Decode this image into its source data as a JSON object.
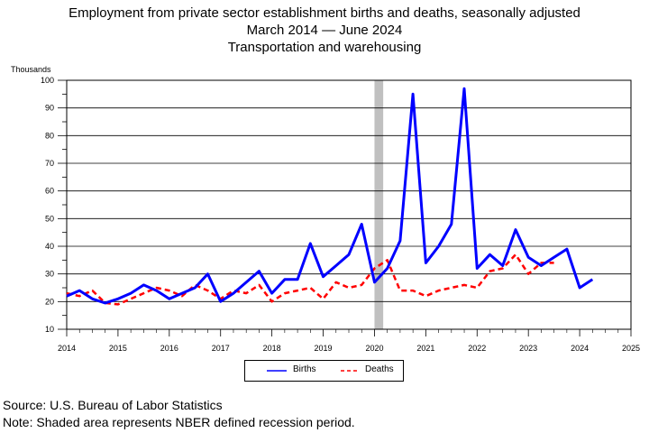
{
  "title": "Employment from private sector establishment births and deaths, seasonally adjusted",
  "subtitle_start": "March 2014",
  "subtitle_end": "June 2024",
  "subtitle_dash": "—",
  "industry": "Transportation and warehousing",
  "source": "Source: U.S. Bureau of Labor Statistics",
  "note": "Note: Shaded area represents NBER defined recession period.",
  "colors": {
    "births": "#0000ff",
    "deaths": "#ff0000",
    "recession": "#c0c0c0"
  },
  "chart_data": {
    "type": "line",
    "ylabel": "Thousands",
    "xlabel": "",
    "xlim": [
      2014,
      2025
    ],
    "ylim": [
      10,
      100
    ],
    "y_ticks": [
      10,
      20,
      30,
      40,
      50,
      60,
      70,
      80,
      90,
      100
    ],
    "x_ticks": [
      2014,
      2015,
      2016,
      2017,
      2018,
      2019,
      2020,
      2021,
      2022,
      2023,
      2024,
      2025
    ],
    "grid": "horizontal",
    "legend": "bottom-center",
    "recession_shading": [
      2020.0,
      2020.17
    ],
    "series": [
      {
        "name": "Births",
        "style": "solid",
        "points": [
          [
            2014.0,
            22
          ],
          [
            2014.25,
            24
          ],
          [
            2014.5,
            21
          ],
          [
            2014.75,
            19.5
          ],
          [
            2015.0,
            21
          ],
          [
            2015.25,
            23
          ],
          [
            2015.5,
            26
          ],
          [
            2015.75,
            24
          ],
          [
            2016.0,
            21
          ],
          [
            2016.25,
            23
          ],
          [
            2016.5,
            25
          ],
          [
            2016.75,
            30
          ],
          [
            2017.0,
            20
          ],
          [
            2017.25,
            23
          ],
          [
            2017.5,
            27
          ],
          [
            2017.75,
            31
          ],
          [
            2018.0,
            23
          ],
          [
            2018.25,
            28
          ],
          [
            2018.5,
            28
          ],
          [
            2018.75,
            41
          ],
          [
            2019.0,
            29
          ],
          [
            2019.25,
            33
          ],
          [
            2019.5,
            37
          ],
          [
            2019.75,
            48
          ],
          [
            2020.0,
            27
          ],
          [
            2020.25,
            32
          ],
          [
            2020.5,
            42
          ],
          [
            2020.75,
            95
          ],
          [
            2021.0,
            34
          ],
          [
            2021.25,
            40
          ],
          [
            2021.5,
            48
          ],
          [
            2021.75,
            97
          ],
          [
            2022.0,
            32
          ],
          [
            2022.25,
            37
          ],
          [
            2022.5,
            33
          ],
          [
            2022.75,
            46
          ],
          [
            2023.0,
            36
          ],
          [
            2023.25,
            33
          ],
          [
            2023.5,
            36
          ],
          [
            2023.75,
            39
          ],
          [
            2024.0,
            25
          ],
          [
            2024.25,
            28
          ]
        ]
      },
      {
        "name": "Deaths",
        "style": "dashed",
        "points": [
          [
            2014.0,
            23
          ],
          [
            2014.25,
            22
          ],
          [
            2014.5,
            24
          ],
          [
            2014.75,
            19.5
          ],
          [
            2015.0,
            19
          ],
          [
            2015.25,
            21
          ],
          [
            2015.5,
            23
          ],
          [
            2015.75,
            25
          ],
          [
            2016.0,
            24
          ],
          [
            2016.25,
            22
          ],
          [
            2016.5,
            26
          ],
          [
            2016.75,
            24
          ],
          [
            2017.0,
            21
          ],
          [
            2017.25,
            24
          ],
          [
            2017.5,
            23
          ],
          [
            2017.75,
            26
          ],
          [
            2018.0,
            20
          ],
          [
            2018.25,
            23
          ],
          [
            2018.5,
            24
          ],
          [
            2018.75,
            25
          ],
          [
            2019.0,
            21
          ],
          [
            2019.25,
            27
          ],
          [
            2019.5,
            25
          ],
          [
            2019.75,
            26
          ],
          [
            2020.0,
            32
          ],
          [
            2020.25,
            35
          ],
          [
            2020.5,
            24
          ],
          [
            2020.75,
            24
          ],
          [
            2021.0,
            22
          ],
          [
            2021.25,
            24
          ],
          [
            2021.5,
            25
          ],
          [
            2021.75,
            26
          ],
          [
            2022.0,
            25
          ],
          [
            2022.25,
            31
          ],
          [
            2022.5,
            32
          ],
          [
            2022.75,
            37
          ],
          [
            2023.0,
            30
          ],
          [
            2023.25,
            34
          ],
          [
            2023.5,
            34
          ]
        ]
      }
    ]
  }
}
